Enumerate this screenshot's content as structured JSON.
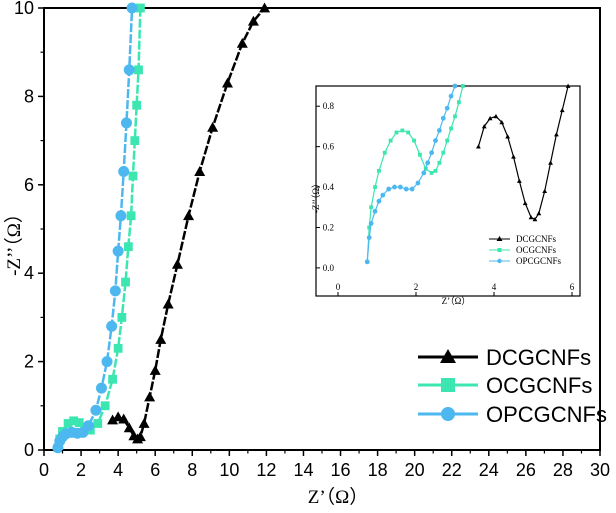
{
  "chart_data": [
    {
      "type": "scatter",
      "title": "",
      "xlabel": "Z’（Ω）",
      "ylabel": "-Z’’（Ω）",
      "xlim": [
        0,
        30
      ],
      "ylim": [
        0,
        10
      ],
      "x_ticks": [
        "0",
        "2",
        "4",
        "6",
        "8",
        "10",
        "12",
        "14",
        "16",
        "18",
        "20",
        "22",
        "24",
        "26",
        "28",
        "30"
      ],
      "y_ticks": [
        "0",
        "2",
        "4",
        "6",
        "8",
        "10"
      ],
      "legend_position": "bottom-right",
      "series": [
        {
          "name": "DCGCNFs",
          "marker": "triangle",
          "color": "#000000",
          "x": [
            3.7,
            4.0,
            4.3,
            4.6,
            4.85,
            5.05,
            5.2,
            5.4,
            5.7,
            6.0,
            6.3,
            6.7,
            7.2,
            7.8,
            8.4,
            9.1,
            9.9,
            10.7,
            11.3,
            11.9
          ],
          "y": [
            0.68,
            0.75,
            0.7,
            0.5,
            0.32,
            0.25,
            0.3,
            0.6,
            1.2,
            1.8,
            2.5,
            3.3,
            4.2,
            5.3,
            6.3,
            7.3,
            8.3,
            9.2,
            9.7,
            10.0
          ]
        },
        {
          "name": "OCGCNFs",
          "marker": "square",
          "color": "#3ce6b0",
          "x": [
            0.75,
            0.85,
            1.0,
            1.3,
            1.6,
            1.9,
            2.2,
            2.5,
            2.9,
            3.3,
            3.7,
            4.0,
            4.2,
            4.4,
            4.55,
            4.7,
            4.8,
            4.9,
            5.0,
            5.1,
            5.2
          ],
          "y": [
            0.05,
            0.25,
            0.42,
            0.6,
            0.66,
            0.62,
            0.5,
            0.45,
            0.6,
            1.0,
            1.6,
            2.3,
            3.0,
            3.8,
            4.6,
            5.3,
            6.2,
            7.0,
            7.8,
            8.6,
            10.0
          ]
        },
        {
          "name": "OPCGCNFs",
          "marker": "circle",
          "color": "#4db8f0",
          "x": [
            0.75,
            0.85,
            1.0,
            1.2,
            1.5,
            1.8,
            2.1,
            2.4,
            2.8,
            3.1,
            3.4,
            3.65,
            3.85,
            4.0,
            4.15,
            4.3,
            4.45,
            4.6,
            4.75
          ],
          "y": [
            0.05,
            0.2,
            0.3,
            0.37,
            0.4,
            0.38,
            0.4,
            0.55,
            0.9,
            1.4,
            2.0,
            2.8,
            3.6,
            4.5,
            5.3,
            6.3,
            7.4,
            8.6,
            10.0
          ]
        }
      ]
    },
    {
      "type": "scatter",
      "title": "",
      "xlabel": "Z’（Ω）",
      "ylabel": "-Z’’（Ω）",
      "xlim": [
        0,
        6
      ],
      "ylim": [
        -0.05,
        0.9
      ],
      "x_ticks": [
        "0",
        "2",
        "4",
        "6"
      ],
      "y_ticks": [
        "0.0",
        "0.2",
        "0.4",
        "0.6",
        "0.8"
      ],
      "legend_position": "bottom-right",
      "series": [
        {
          "name": "DCGCNFs",
          "marker": "triangle",
          "color": "#000000",
          "x": [
            3.6,
            3.75,
            3.9,
            4.05,
            4.2,
            4.35,
            4.5,
            4.65,
            4.8,
            4.95,
            5.05,
            5.15,
            5.3,
            5.45,
            5.6,
            5.75,
            5.9
          ],
          "y": [
            0.6,
            0.7,
            0.74,
            0.75,
            0.72,
            0.65,
            0.55,
            0.43,
            0.32,
            0.25,
            0.24,
            0.27,
            0.38,
            0.52,
            0.66,
            0.78,
            0.9
          ]
        },
        {
          "name": "OCGCNFs",
          "marker": "square",
          "color": "#3ce6b0",
          "x": [
            0.75,
            0.8,
            0.85,
            0.95,
            1.05,
            1.2,
            1.35,
            1.5,
            1.65,
            1.8,
            1.95,
            2.1,
            2.25,
            2.4,
            2.5,
            2.6,
            2.7,
            2.8,
            2.9,
            3.0,
            3.1,
            3.2
          ],
          "y": [
            0.03,
            0.2,
            0.3,
            0.4,
            0.48,
            0.57,
            0.63,
            0.67,
            0.68,
            0.67,
            0.63,
            0.56,
            0.49,
            0.47,
            0.48,
            0.52,
            0.57,
            0.63,
            0.69,
            0.75,
            0.82,
            0.9
          ]
        },
        {
          "name": "OPCGCNFs",
          "marker": "circle",
          "color": "#4db8f0",
          "x": [
            0.75,
            0.8,
            0.85,
            0.95,
            1.05,
            1.15,
            1.3,
            1.45,
            1.6,
            1.75,
            1.9,
            2.05,
            2.2,
            2.3,
            2.4,
            2.5,
            2.6,
            2.7,
            2.8,
            2.9,
            3.0
          ],
          "y": [
            0.03,
            0.15,
            0.22,
            0.28,
            0.33,
            0.36,
            0.39,
            0.4,
            0.4,
            0.39,
            0.39,
            0.42,
            0.47,
            0.52,
            0.57,
            0.63,
            0.68,
            0.74,
            0.79,
            0.85,
            0.9
          ]
        }
      ]
    }
  ]
}
